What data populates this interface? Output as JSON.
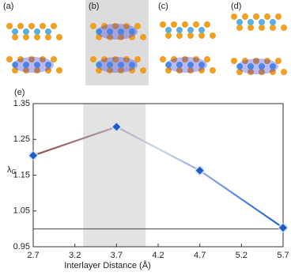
{
  "panel_labels": [
    "(a)",
    "(b)",
    "(c)",
    "(d)"
  ],
  "chart_data": {
    "type": "line",
    "panel_label": "(e)",
    "x": [
      2.7,
      3.7,
      4.7,
      5.7
    ],
    "values": [
      1.205,
      1.285,
      1.163,
      1.003
    ],
    "xlim": [
      2.7,
      5.7
    ],
    "xticks": [
      2.7,
      3.2,
      3.7,
      4.2,
      4.7,
      5.2,
      5.7
    ],
    "ylim": [
      0.95,
      1.35
    ],
    "yticks": [
      0.95,
      1.05,
      1.15,
      1.25,
      1.35
    ],
    "xlabel": "Interlayer Distance (Å)",
    "ylabel": {
      "main": "λ",
      "sub": "G"
    },
    "highlight_range": [
      3.3,
      4.05
    ],
    "reference_line": 1,
    "line_colors": [
      "#8a4545",
      "#c9d6ea",
      "#1d5fd6"
    ],
    "marker_color": "#1e5bc6"
  }
}
